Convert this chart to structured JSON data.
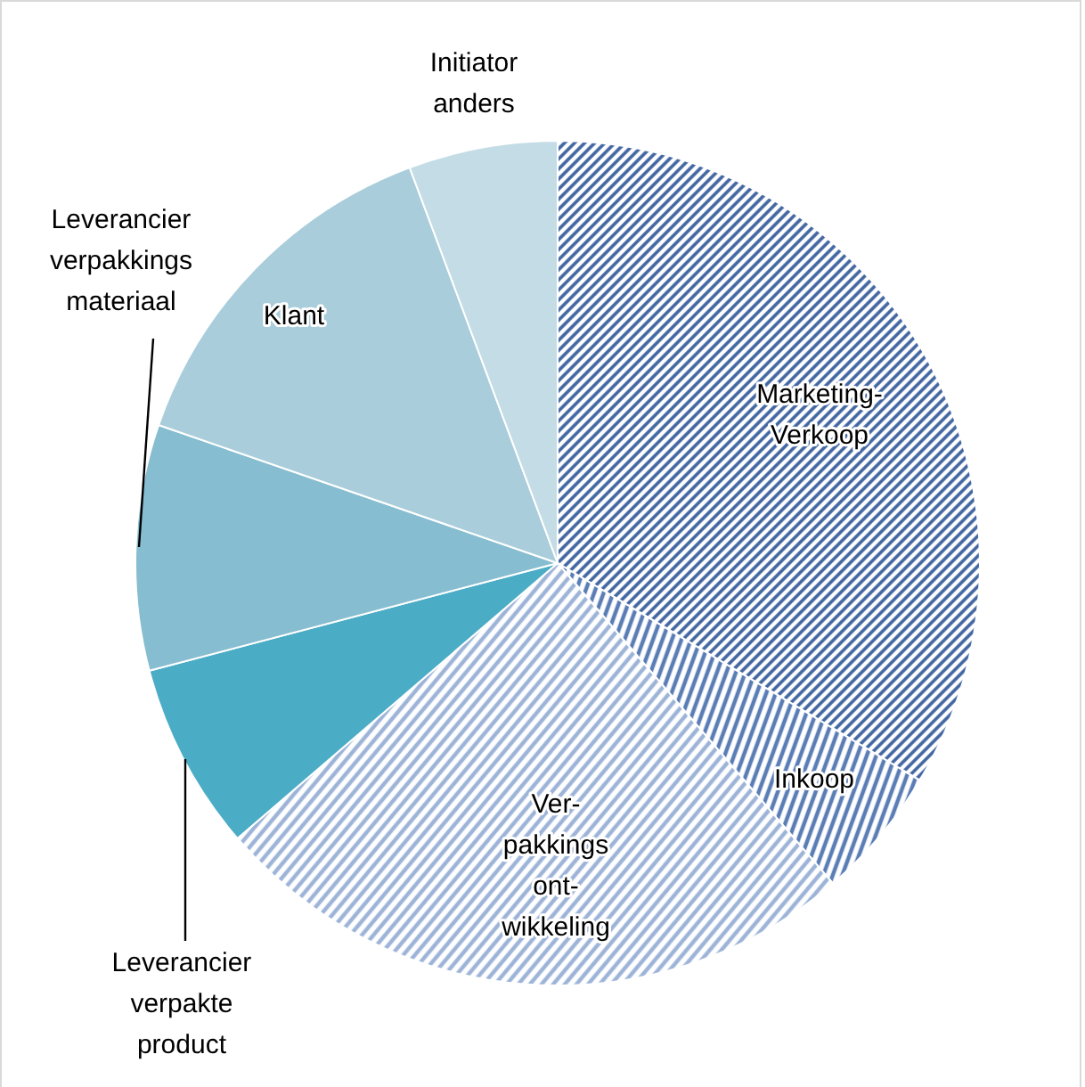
{
  "chart_data": {
    "type": "pie",
    "categories": [
      "Marketing-\nVerkoop",
      "Inkoop",
      "Ver-\npakkings\nont-\nwikkeling",
      "Leverancier\nverpakte\nproduct",
      "Leverancier\nverpakkings\nmateriaal",
      "Klant",
      "Initiator\nanders"
    ],
    "values": [
      33.6,
      5.1,
      25,
      7.2,
      9.4,
      14,
      5.7
    ],
    "colors": [
      "#3f64a0",
      "#5a7db5",
      "#9db4d8",
      "#4bacc6",
      "#86bdd0",
      "#a9cddb",
      "#c4dce5"
    ]
  }
}
